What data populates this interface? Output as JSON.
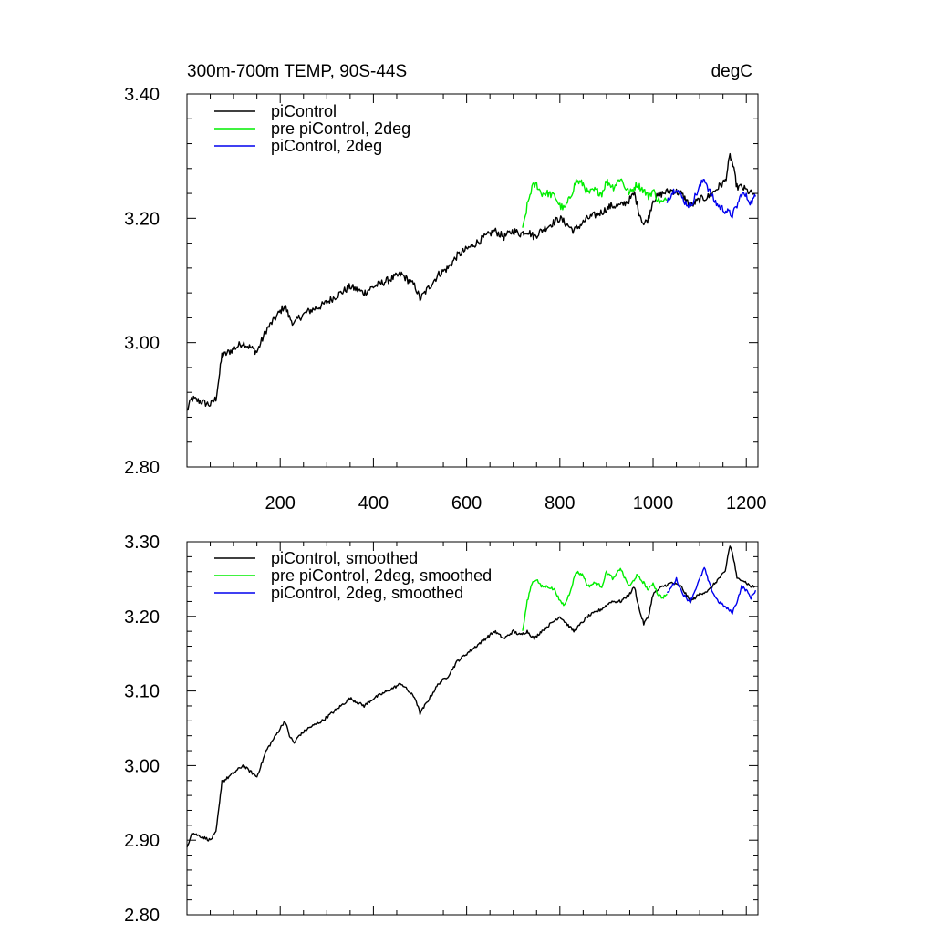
{
  "chart_data": [
    {
      "type": "line",
      "title": "300m-700m TEMP, 90S-44S",
      "units": "degC",
      "xlim": [
        0,
        1225
      ],
      "ylim": [
        2.8,
        3.4
      ],
      "x_ticks": [
        200,
        400,
        600,
        800,
        1000,
        1200
      ],
      "x_tick_labels": [
        "200",
        "400",
        "600",
        "800",
        "1000",
        "1200"
      ],
      "x_minor_step": 50,
      "y_ticks": [
        2.8,
        3.0,
        3.2,
        3.4
      ],
      "y_tick_labels": [
        "2.80",
        "3.00",
        "3.20",
        "3.40"
      ],
      "y_minor_step": 0.04,
      "legend": [
        "piControl",
        "pre piControl, 2deg",
        "piControl, 2deg"
      ],
      "series": [
        {
          "name": "piControl",
          "color": "#000000",
          "x": [
            0,
            10,
            30,
            50,
            62,
            70,
            75,
            80,
            100,
            120,
            140,
            150,
            170,
            200,
            210,
            220,
            230,
            240,
            260,
            290,
            330,
            350,
            380,
            400,
            430,
            460,
            490,
            500,
            520,
            540,
            560,
            580,
            600,
            620,
            640,
            660,
            680,
            700,
            715,
            730,
            745,
            760,
            780,
            800,
            830,
            860,
            890,
            910,
            930,
            950,
            960,
            970,
            980,
            990,
            1000,
            1020,
            1040,
            1060,
            1080,
            1100,
            1120,
            1140,
            1155,
            1160,
            1165,
            1170,
            1175,
            1180,
            1190,
            1200,
            1210,
            1218
          ],
          "y": [
            2.89,
            2.91,
            2.905,
            2.9,
            2.91,
            2.95,
            2.98,
            2.98,
            2.99,
            3.0,
            2.99,
            2.985,
            3.02,
            3.05,
            3.06,
            3.04,
            3.03,
            3.04,
            3.05,
            3.06,
            3.08,
            3.09,
            3.08,
            3.09,
            3.1,
            3.11,
            3.09,
            3.07,
            3.09,
            3.11,
            3.12,
            3.14,
            3.15,
            3.16,
            3.17,
            3.18,
            3.17,
            3.18,
            3.175,
            3.18,
            3.17,
            3.18,
            3.19,
            3.2,
            3.18,
            3.2,
            3.21,
            3.22,
            3.22,
            3.23,
            3.24,
            3.21,
            3.19,
            3.2,
            3.23,
            3.24,
            3.245,
            3.24,
            3.22,
            3.23,
            3.235,
            3.25,
            3.26,
            3.28,
            3.3,
            3.29,
            3.27,
            3.25,
            3.25,
            3.245,
            3.24,
            3.24
          ],
          "noise": 0.006
        },
        {
          "name": "pre piControl, 2deg",
          "color": "#00ee00",
          "x": [
            720,
            730,
            740,
            750,
            760,
            775,
            790,
            800,
            810,
            820,
            835,
            850,
            860,
            875,
            890,
            900,
            915,
            930,
            940,
            950,
            965,
            980,
            990,
            1000,
            1010,
            1020,
            1030
          ],
          "y": [
            3.18,
            3.22,
            3.25,
            3.255,
            3.24,
            3.24,
            3.235,
            3.22,
            3.215,
            3.23,
            3.26,
            3.255,
            3.24,
            3.245,
            3.24,
            3.26,
            3.25,
            3.265,
            3.25,
            3.24,
            3.255,
            3.245,
            3.235,
            3.245,
            3.23,
            3.225,
            3.23
          ],
          "noise": 0.006
        },
        {
          "name": "piControl, 2deg",
          "color": "#0000ee",
          "x": [
            1030,
            1040,
            1050,
            1060,
            1070,
            1080,
            1090,
            1100,
            1110,
            1120,
            1130,
            1140,
            1150,
            1160,
            1170,
            1180,
            1190,
            1200,
            1210,
            1220
          ],
          "y": [
            3.23,
            3.24,
            3.25,
            3.235,
            3.225,
            3.22,
            3.235,
            3.25,
            3.265,
            3.245,
            3.23,
            3.22,
            3.215,
            3.21,
            3.205,
            3.22,
            3.24,
            3.235,
            3.225,
            3.235
          ],
          "noise": 0.006
        }
      ]
    },
    {
      "type": "line",
      "title": "",
      "xlim": [
        0,
        1225
      ],
      "ylim": [
        2.8,
        3.3
      ],
      "x_ticks": [
        200,
        400,
        600,
        800,
        1000,
        1200
      ],
      "x_minor_step": 50,
      "y_ticks": [
        2.8,
        2.9,
        3.0,
        3.1,
        3.2,
        3.3
      ],
      "y_tick_labels": [
        "2.80",
        "2.90",
        "3.00",
        "3.10",
        "3.20",
        "3.30"
      ],
      "y_minor_step": 0.02,
      "legend": [
        "piControl, smoothed",
        "pre piControl, 2deg, smoothed",
        "piControl, 2deg, smoothed"
      ],
      "series": [
        {
          "name": "piControl, smoothed",
          "color": "#000000",
          "x": [
            0,
            10,
            30,
            50,
            62,
            70,
            75,
            80,
            100,
            120,
            140,
            150,
            170,
            200,
            210,
            220,
            230,
            240,
            260,
            290,
            330,
            350,
            380,
            400,
            430,
            460,
            490,
            500,
            520,
            540,
            560,
            580,
            600,
            620,
            640,
            660,
            680,
            700,
            715,
            730,
            745,
            760,
            780,
            800,
            830,
            860,
            890,
            910,
            930,
            950,
            960,
            970,
            980,
            990,
            1000,
            1020,
            1040,
            1060,
            1080,
            1100,
            1120,
            1140,
            1155,
            1160,
            1165,
            1170,
            1175,
            1180,
            1190,
            1200,
            1210,
            1218
          ],
          "y": [
            2.89,
            2.91,
            2.905,
            2.9,
            2.91,
            2.95,
            2.98,
            2.98,
            2.99,
            3.0,
            2.99,
            2.985,
            3.02,
            3.05,
            3.06,
            3.04,
            3.03,
            3.04,
            3.05,
            3.06,
            3.08,
            3.09,
            3.08,
            3.09,
            3.1,
            3.11,
            3.09,
            3.07,
            3.09,
            3.11,
            3.12,
            3.14,
            3.15,
            3.16,
            3.17,
            3.18,
            3.17,
            3.18,
            3.175,
            3.18,
            3.17,
            3.18,
            3.19,
            3.2,
            3.18,
            3.2,
            3.21,
            3.22,
            3.22,
            3.23,
            3.24,
            3.21,
            3.19,
            3.2,
            3.23,
            3.24,
            3.245,
            3.24,
            3.22,
            3.23,
            3.235,
            3.25,
            3.26,
            3.28,
            3.295,
            3.285,
            3.27,
            3.25,
            3.25,
            3.245,
            3.24,
            3.24
          ],
          "noise": 0.002
        },
        {
          "name": "pre piControl, 2deg, smoothed",
          "color": "#00ee00",
          "x": [
            720,
            730,
            740,
            750,
            760,
            775,
            790,
            800,
            810,
            820,
            835,
            850,
            860,
            875,
            890,
            900,
            915,
            930,
            940,
            950,
            965,
            980,
            990,
            1000,
            1010,
            1020,
            1030
          ],
          "y": [
            3.18,
            3.22,
            3.245,
            3.25,
            3.24,
            3.24,
            3.235,
            3.22,
            3.215,
            3.23,
            3.26,
            3.255,
            3.24,
            3.245,
            3.24,
            3.26,
            3.25,
            3.265,
            3.25,
            3.24,
            3.255,
            3.245,
            3.235,
            3.245,
            3.23,
            3.225,
            3.23
          ],
          "noise": 0.002
        },
        {
          "name": "piControl, 2deg, smoothed",
          "color": "#0000ee",
          "x": [
            1030,
            1040,
            1050,
            1060,
            1070,
            1080,
            1090,
            1100,
            1110,
            1120,
            1130,
            1140,
            1150,
            1160,
            1170,
            1180,
            1190,
            1200,
            1210,
            1220
          ],
          "y": [
            3.23,
            3.24,
            3.25,
            3.235,
            3.225,
            3.22,
            3.235,
            3.25,
            3.265,
            3.245,
            3.23,
            3.22,
            3.215,
            3.21,
            3.205,
            3.22,
            3.24,
            3.235,
            3.225,
            3.235
          ],
          "noise": 0.002
        }
      ]
    }
  ]
}
